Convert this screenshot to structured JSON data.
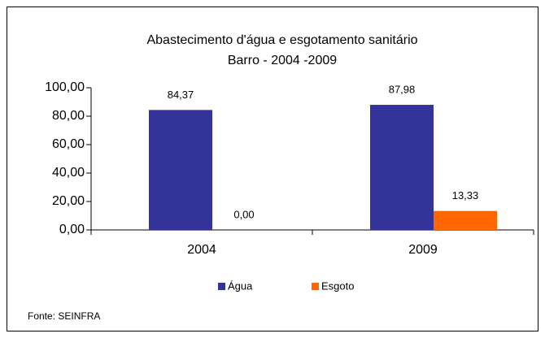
{
  "chart_data": {
    "type": "bar",
    "title": "Abastecimento d'água e esgotamento sanitário",
    "subtitle": "Barro - 2004 -2009",
    "categories": [
      "2004",
      "2009"
    ],
    "series": [
      {
        "name": "Água",
        "color": "#333399",
        "values": [
          84.37,
          87.98
        ],
        "value_labels": [
          "84,37",
          "87,98"
        ]
      },
      {
        "name": "Esgoto",
        "color": "#ff6600",
        "values": [
          0,
          13.33
        ],
        "value_labels": [
          "0,00",
          "13,33"
        ]
      }
    ],
    "ylim": [
      0,
      100
    ],
    "yticks": [
      {
        "value": 0,
        "label": "0,00"
      },
      {
        "value": 20,
        "label": "20,00"
      },
      {
        "value": 40,
        "label": "40,00"
      },
      {
        "value": 60,
        "label": "60,00"
      },
      {
        "value": 80,
        "label": "80,00"
      },
      {
        "value": 100,
        "label": "100,00"
      }
    ],
    "source": "Fonte: SEINFRA"
  }
}
